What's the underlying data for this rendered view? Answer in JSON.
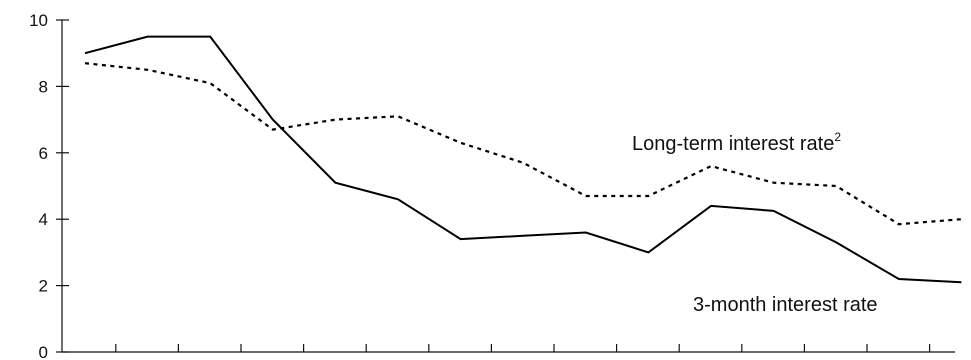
{
  "chart_data": {
    "type": "line",
    "title": "",
    "xlabel": "",
    "ylabel": "",
    "ylim": [
      0,
      10
    ],
    "yticks": [
      0,
      2,
      4,
      6,
      8,
      10
    ],
    "y_tick_labels": [
      "0",
      "2",
      "4",
      "6",
      "8",
      "10"
    ],
    "x_tick_count": 15,
    "grid": false,
    "legend": "none",
    "series": [
      {
        "name": "3-month interest rate",
        "label_text": "3-month interest rate",
        "style": "solid",
        "color": "#000000",
        "values": [
          9.0,
          9.5,
          9.5,
          7.0,
          5.1,
          4.6,
          3.4,
          3.5,
          3.6,
          3.0,
          4.4,
          4.25,
          3.3,
          2.2,
          2.1
        ]
      },
      {
        "name": "Long-term interest rate",
        "label_text": "Long-term interest rate",
        "label_superscript": "2",
        "style": "dashed",
        "color": "#000000",
        "values": [
          8.7,
          8.5,
          8.1,
          6.7,
          7.0,
          7.1,
          6.3,
          5.7,
          4.7,
          4.7,
          5.6,
          5.1,
          5.0,
          3.85,
          4.0
        ]
      }
    ]
  }
}
